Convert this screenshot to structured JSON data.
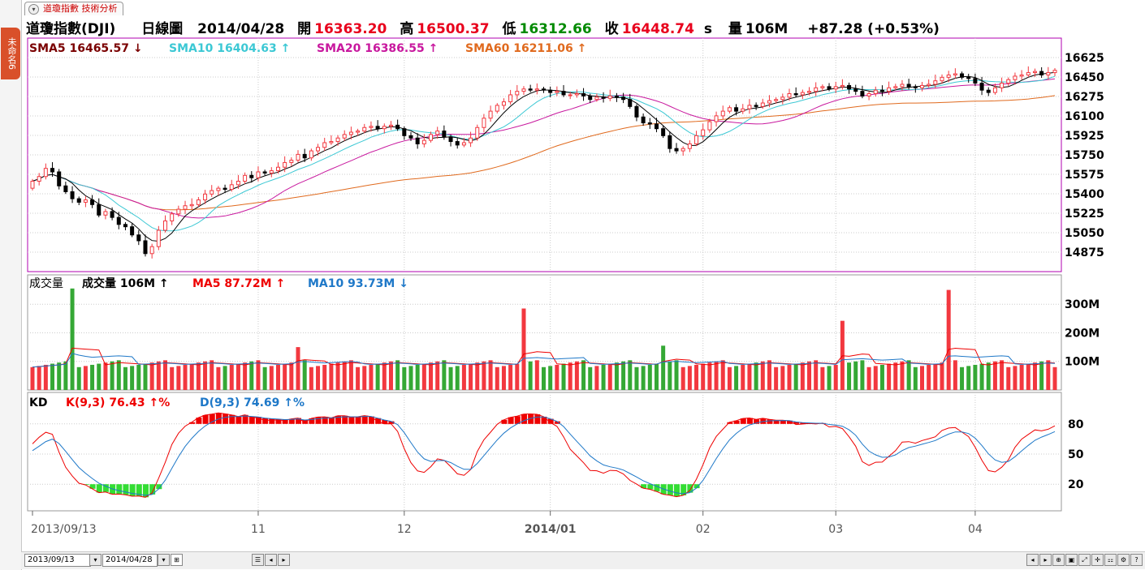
{
  "tab": {
    "side_label": "未命名6",
    "title": "道瓊指數 技術分析"
  },
  "header": {
    "symbol": "道瓊指數(DJI)",
    "period": "日線圖",
    "date": "2014/04/28",
    "open_label": "開",
    "open": "16363.20",
    "high_label": "高",
    "high": "16500.37",
    "low_label": "低",
    "low": "16312.66",
    "close_label": "收",
    "close": "16448.74",
    "close_suffix": "s",
    "vol_label": "量",
    "vol": "106M",
    "change": "+87.28 (+0.53%)"
  },
  "colors": {
    "up": "#f2383f",
    "down": "#000000",
    "vol_up": "#f2383f",
    "vol_down": "#35a835",
    "sma5": "#000000",
    "sma10": "#3cc8d4",
    "sma20": "#c8189e",
    "sma60": "#e06a1e",
    "k": "#ee0000",
    "d": "#1e78c8"
  },
  "indicators": {
    "sma5": "SMA5 16465.57",
    "sma5_arrow": "↓",
    "sma10": "SMA10 16404.63",
    "sma10_arrow": "↑",
    "sma20": "SMA20 16386.55",
    "sma20_arrow": "↑",
    "sma60": "SMA60 16211.06",
    "sma60_arrow": "↑"
  },
  "volume_legend": {
    "title": "成交量",
    "label": "成交量",
    "value": "106M",
    "value_arrow": "↑",
    "ma5": "MA5 87.72M",
    "ma5_arrow": "↑",
    "ma10": "MA10 93.73M",
    "ma10_arrow": "↓"
  },
  "kd_legend": {
    "title": "KD",
    "k": "K(9,3) 76.43",
    "k_arrow": "↑%",
    "d": "D(9,3) 74.69",
    "d_arrow": "↑%"
  },
  "chart_data": {
    "type": "candlestick",
    "price_axis": {
      "ticks": [
        14875,
        15050,
        15225,
        15400,
        15575,
        15750,
        15925,
        16100,
        16275,
        16450,
        16625
      ],
      "range": [
        14700,
        16800
      ]
    },
    "volume_axis": {
      "ticks": [
        "100M",
        "200M",
        "300M"
      ],
      "tick_values": [
        100,
        200,
        300
      ],
      "range": [
        0,
        380
      ]
    },
    "kd_axis": {
      "ticks": [
        20,
        50,
        80
      ],
      "range": [
        0,
        100
      ]
    },
    "x_labels": [
      "2013/09/13",
      "11",
      "12",
      "2014/01",
      "02",
      "03",
      "04"
    ],
    "x_label_index": [
      0,
      34,
      56,
      78,
      101,
      121,
      142
    ],
    "start": [
      15450,
      15350
    ],
    "close_walk": [
      0.6,
      0.4,
      0.7,
      -0.3,
      -1.2,
      -0.5,
      -0.6,
      -0.3,
      0.2,
      -0.4,
      -0.9,
      0.3,
      -0.5,
      -0.6,
      -0.2,
      -0.7,
      -0.5,
      -1.1,
      0.6,
      1.4,
      0.8,
      0.6,
      0.4,
      0.3,
      0.1,
      0.4,
      0.5,
      0.3,
      0.2,
      -0.1,
      0.4,
      0.3,
      0.5,
      -0.2,
      0.5,
      -0.1,
      0.2,
      0.3,
      0.4,
      0.2,
      0.5,
      -0.3,
      0.6,
      0.3,
      0.4,
      0.1,
      0.3,
      0.3,
      0.2,
      0.1,
      0.3,
      0.1,
      -0.2,
      0.2,
      0.1,
      -0.3,
      -0.6,
      -0.2,
      -0.5,
      0.3,
      0.5,
      0.3,
      -0.5,
      -0.4,
      -0.3,
      0.2,
      0.4,
      0.9,
      0.8,
      0.6,
      0.5,
      0.3,
      0.6,
      0.3,
      0.2,
      -0.1,
      0.1,
      -0.1,
      -0.2,
      0.1,
      -0.3,
      0.0,
      0.1,
      -0.2,
      -0.3,
      0.2,
      -0.1,
      0.2,
      -0.1,
      -0.2,
      -0.6,
      -0.9,
      -0.5,
      -0.1,
      -0.4,
      -0.6,
      -1.1,
      -0.2,
      0.2,
      0.4,
      0.7,
      0.5,
      0.7,
      0.5,
      0.4,
      0.3,
      -0.3,
      0.2,
      0.3,
      -0.1,
      0.3,
      0.2,
      0.1,
      0.2,
      0.3,
      -0.1,
      0.2,
      0.1,
      0.3,
      0.1,
      -0.2,
      0.2,
      0.1,
      -0.3,
      -0.2,
      -0.4,
      0.2,
      0.3,
      -0.1,
      0.3,
      0.1,
      0.2,
      -0.2,
      -0.1,
      0.2,
      0.1,
      0.3,
      0.3,
      0.2,
      0.1,
      -0.3,
      -0.1,
      -0.4,
      -0.6,
      -0.2,
      0.4,
      0.4,
      0.3,
      0.3,
      0.1,
      0.2,
      0.1,
      -0.3,
      0.2,
      0.2
    ]
  }
}
